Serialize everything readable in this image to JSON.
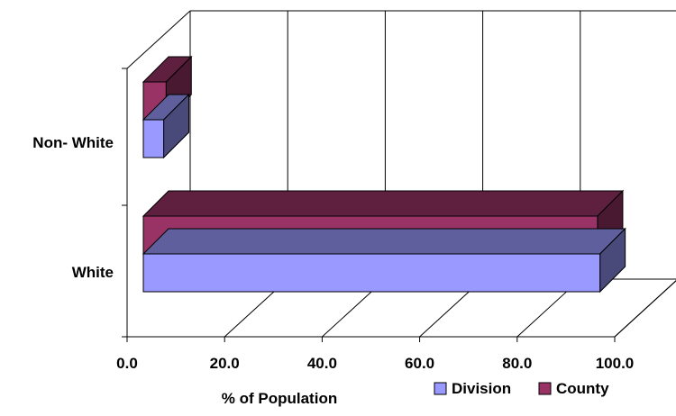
{
  "chart_data": {
    "type": "bar",
    "orientation": "horizontal",
    "style": "3d",
    "categories": [
      "White",
      "Non- White"
    ],
    "series": [
      {
        "name": "Division",
        "values": [
          95.5,
          7.5
        ],
        "color": "#9999FF"
      },
      {
        "name": "County",
        "values": [
          95.0,
          8.0
        ],
        "color": "#993366"
      }
    ],
    "xlim": [
      0,
      100
    ],
    "xticks": [
      "0.0",
      "20.0",
      "40.0",
      "60.0",
      "80.0",
      "100.0"
    ],
    "xlabel": "% of Population",
    "title": "",
    "ylabel": "",
    "grid": true,
    "legend": "bottom-right"
  }
}
